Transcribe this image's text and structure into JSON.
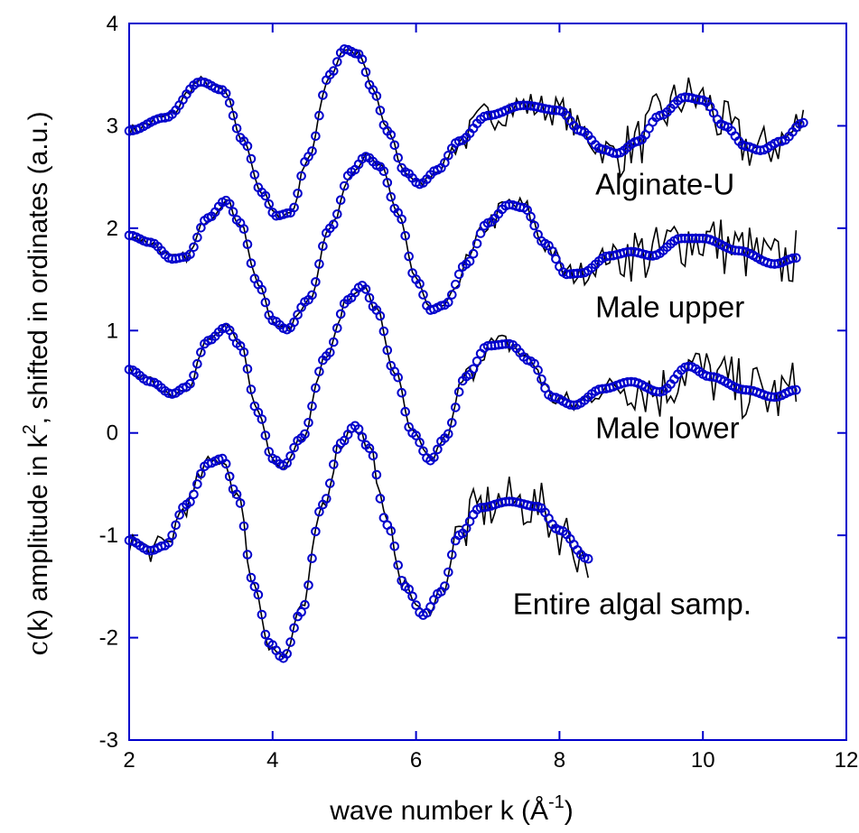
{
  "chart_data": {
    "type": "line",
    "xlabel": "wave number k (Å",
    "xlabel_sup": "-1",
    "xlabel_end": ")",
    "ylabel_symbol": "c",
    "ylabel_a": "(k) amplitude in k",
    "ylabel_sup": "2",
    "ylabel_b": ", shifted in ordinates (a.u.)",
    "xlim": [
      2,
      12
    ],
    "ylim": [
      -3,
      4
    ],
    "x_ticks": [
      2,
      4,
      6,
      8,
      10,
      12
    ],
    "y_ticks": [
      -3,
      -2,
      -1,
      0,
      1,
      2,
      3,
      4
    ],
    "x_tick_labels": [
      "2",
      "4",
      "6",
      "8",
      "10",
      "12"
    ],
    "y_tick_labels": [
      "-3",
      "-2",
      "-1",
      "0",
      "1",
      "2",
      "3",
      "4"
    ],
    "colors": {
      "axis": "#0000cc",
      "experiment": "#000000",
      "fit": "#0000cc"
    },
    "series": [
      {
        "name": "Alginate-U",
        "fit": [
          [
            2.0,
            2.95
          ],
          [
            2.5,
            3.08
          ],
          [
            3.0,
            3.43
          ],
          [
            3.3,
            3.35
          ],
          [
            3.6,
            2.85
          ],
          [
            3.85,
            2.35
          ],
          [
            4.05,
            2.12
          ],
          [
            4.25,
            2.15
          ],
          [
            4.5,
            2.7
          ],
          [
            4.8,
            3.5
          ],
          [
            5.0,
            3.75
          ],
          [
            5.2,
            3.7
          ],
          [
            5.4,
            3.35
          ],
          [
            5.6,
            2.95
          ],
          [
            5.85,
            2.55
          ],
          [
            6.05,
            2.43
          ],
          [
            6.3,
            2.57
          ],
          [
            6.6,
            2.85
          ],
          [
            7.0,
            3.1
          ],
          [
            7.5,
            3.2
          ],
          [
            8.0,
            3.15
          ],
          [
            8.3,
            2.95
          ],
          [
            8.6,
            2.77
          ],
          [
            8.8,
            2.73
          ],
          [
            9.1,
            2.85
          ],
          [
            9.4,
            3.1
          ],
          [
            9.75,
            3.28
          ],
          [
            10.0,
            3.25
          ],
          [
            10.3,
            3.0
          ],
          [
            10.6,
            2.8
          ],
          [
            10.8,
            2.76
          ],
          [
            11.1,
            2.85
          ],
          [
            11.4,
            3.03
          ]
        ],
        "experiment_noise": [
          0.06,
          0.04,
          0.15,
          0.25
        ],
        "label_anchor": [
          8.5,
          2.33
        ]
      },
      {
        "name": "Male upper",
        "fit": [
          [
            2.0,
            1.93
          ],
          [
            2.3,
            1.86
          ],
          [
            2.6,
            1.7
          ],
          [
            2.8,
            1.72
          ],
          [
            3.1,
            2.1
          ],
          [
            3.35,
            2.27
          ],
          [
            3.55,
            2.05
          ],
          [
            3.8,
            1.45
          ],
          [
            4.0,
            1.1
          ],
          [
            4.2,
            1.01
          ],
          [
            4.5,
            1.3
          ],
          [
            4.8,
            2.0
          ],
          [
            5.1,
            2.55
          ],
          [
            5.3,
            2.7
          ],
          [
            5.5,
            2.6
          ],
          [
            5.75,
            2.15
          ],
          [
            6.0,
            1.5
          ],
          [
            6.2,
            1.2
          ],
          [
            6.4,
            1.25
          ],
          [
            6.7,
            1.65
          ],
          [
            7.0,
            2.05
          ],
          [
            7.3,
            2.23
          ],
          [
            7.5,
            2.2
          ],
          [
            7.8,
            1.85
          ],
          [
            8.1,
            1.55
          ],
          [
            8.3,
            1.56
          ],
          [
            8.7,
            1.73
          ],
          [
            9.0,
            1.77
          ],
          [
            9.3,
            1.73
          ],
          [
            9.7,
            1.9
          ],
          [
            10.0,
            1.9
          ],
          [
            10.5,
            1.78
          ],
          [
            11.0,
            1.65
          ],
          [
            11.3,
            1.71
          ]
        ],
        "experiment_noise": [
          0.05,
          0.04,
          0.12,
          0.3
        ],
        "label_anchor": [
          8.5,
          1.13
        ]
      },
      {
        "name": "Male lower",
        "fit": [
          [
            2.0,
            0.62
          ],
          [
            2.3,
            0.5
          ],
          [
            2.6,
            0.38
          ],
          [
            2.8,
            0.45
          ],
          [
            3.1,
            0.9
          ],
          [
            3.35,
            1.03
          ],
          [
            3.55,
            0.85
          ],
          [
            3.8,
            0.2
          ],
          [
            4.0,
            -0.25
          ],
          [
            4.15,
            -0.32
          ],
          [
            4.4,
            -0.05
          ],
          [
            4.75,
            0.75
          ],
          [
            5.05,
            1.3
          ],
          [
            5.25,
            1.44
          ],
          [
            5.45,
            1.2
          ],
          [
            5.7,
            0.6
          ],
          [
            5.95,
            0.0
          ],
          [
            6.2,
            -0.27
          ],
          [
            6.4,
            -0.05
          ],
          [
            6.7,
            0.55
          ],
          [
            7.0,
            0.85
          ],
          [
            7.3,
            0.87
          ],
          [
            7.6,
            0.7
          ],
          [
            7.9,
            0.35
          ],
          [
            8.2,
            0.27
          ],
          [
            8.6,
            0.43
          ],
          [
            9.0,
            0.5
          ],
          [
            9.4,
            0.4
          ],
          [
            9.8,
            0.65
          ],
          [
            10.1,
            0.55
          ],
          [
            10.6,
            0.42
          ],
          [
            11.0,
            0.35
          ],
          [
            11.3,
            0.42
          ]
        ],
        "experiment_noise": [
          0.05,
          0.04,
          0.12,
          0.3
        ],
        "label_anchor": [
          8.5,
          -0.05
        ]
      },
      {
        "name": "Entire algal samp.",
        "fit": [
          [
            2.0,
            -1.05
          ],
          [
            2.3,
            -1.15
          ],
          [
            2.5,
            -1.1
          ],
          [
            2.8,
            -0.7
          ],
          [
            3.1,
            -0.3
          ],
          [
            3.3,
            -0.25
          ],
          [
            3.5,
            -0.6
          ],
          [
            3.75,
            -1.5
          ],
          [
            3.95,
            -2.05
          ],
          [
            4.15,
            -2.2
          ],
          [
            4.4,
            -1.75
          ],
          [
            4.7,
            -0.7
          ],
          [
            4.95,
            -0.1
          ],
          [
            5.15,
            0.07
          ],
          [
            5.35,
            -0.15
          ],
          [
            5.6,
            -0.9
          ],
          [
            5.85,
            -1.5
          ],
          [
            6.1,
            -1.78
          ],
          [
            6.35,
            -1.55
          ],
          [
            6.6,
            -1.0
          ],
          [
            6.9,
            -0.73
          ],
          [
            7.3,
            -0.67
          ],
          [
            7.7,
            -0.72
          ],
          [
            8.0,
            -0.95
          ],
          [
            8.4,
            -1.23
          ]
        ],
        "experiment_noise": [
          0.12,
          0.08,
          0.25,
          0.45
        ],
        "label_anchor": [
          7.35,
          -1.77
        ]
      }
    ]
  }
}
